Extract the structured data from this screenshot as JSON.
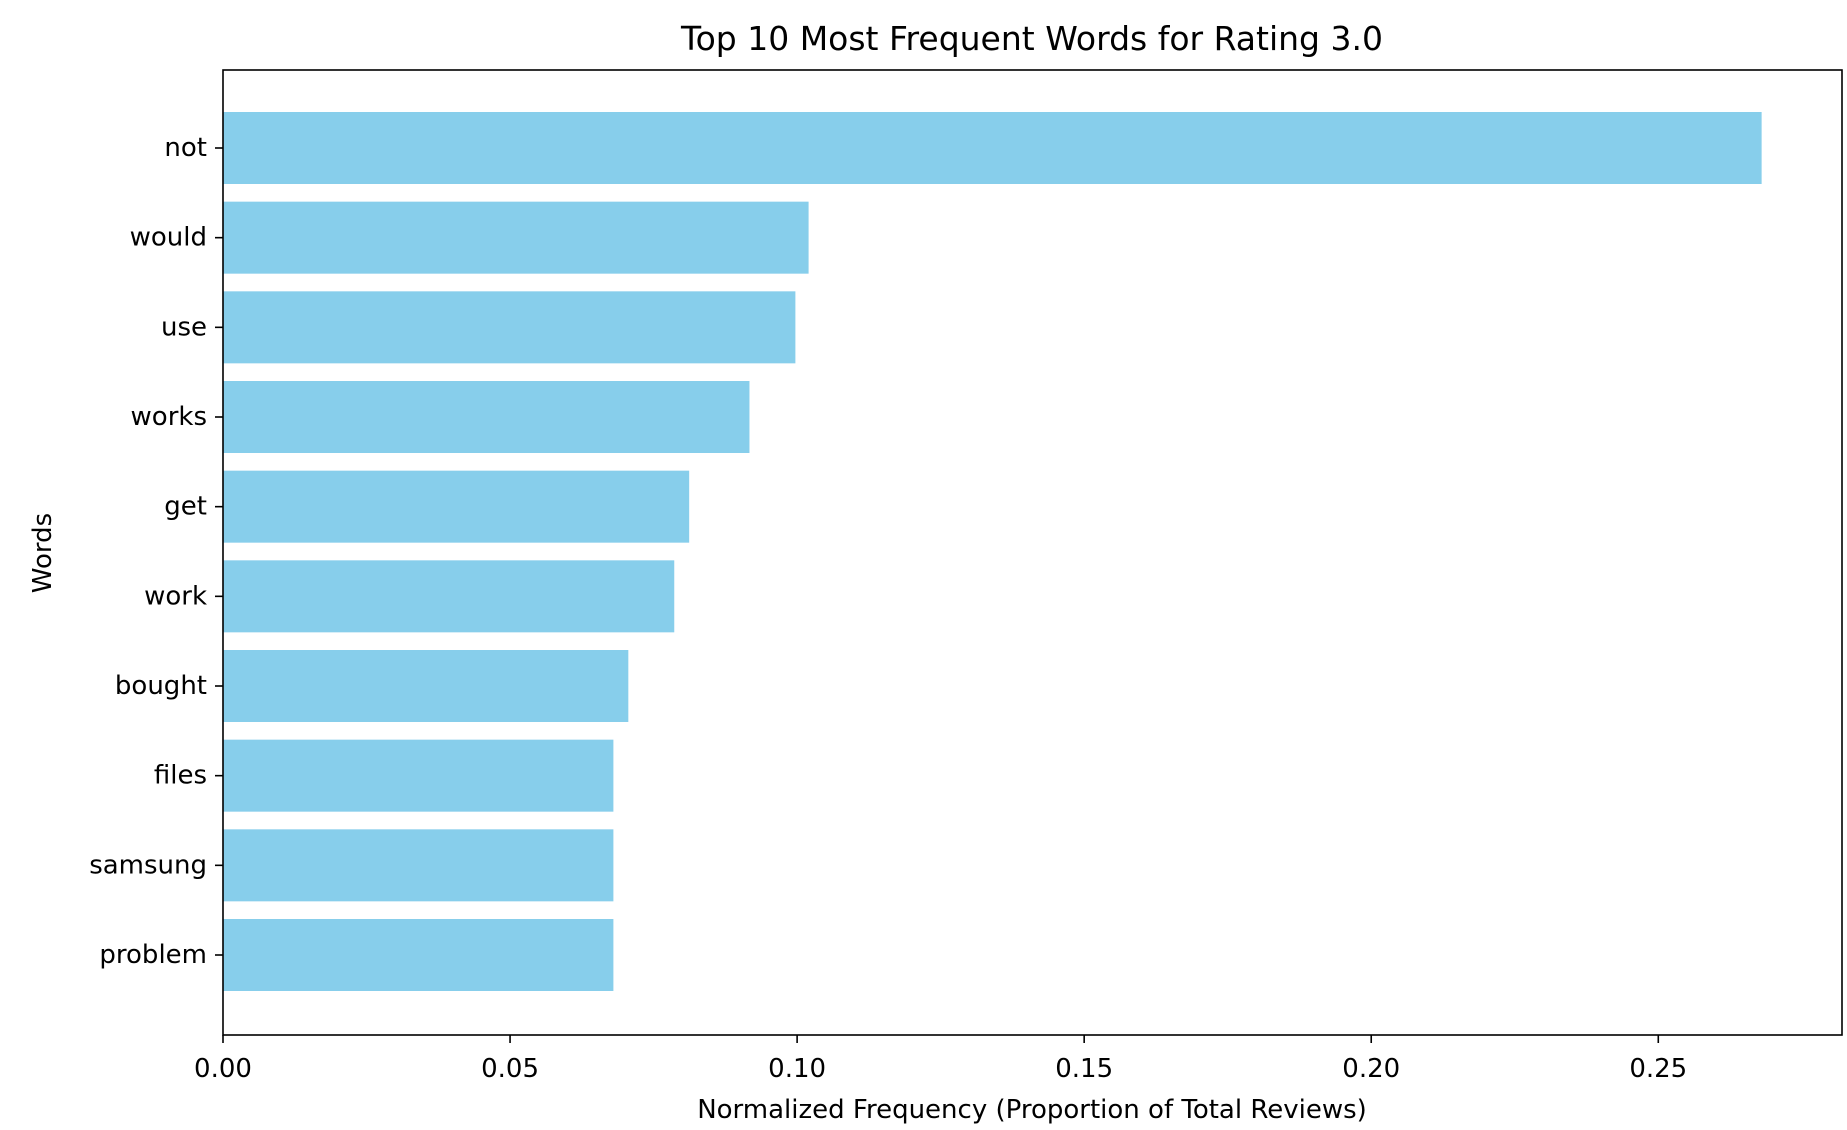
{
  "chart_data": {
    "type": "bar",
    "orientation": "horizontal",
    "title": "Top 10 Most Frequent Words for Rating 3.0",
    "xlabel": "Normalized Frequency (Proportion of Total Reviews)",
    "ylabel": "Words",
    "categories": [
      "not",
      "would",
      "use",
      "works",
      "get",
      "work",
      "bought",
      "files",
      "samsung",
      "problem"
    ],
    "values": [
      0.268,
      0.102,
      0.0997,
      0.0917,
      0.0812,
      0.0786,
      0.0706,
      0.068,
      0.068,
      0.068
    ],
    "xlim": [
      0,
      0.282
    ],
    "xticks": [
      "0.00",
      "0.05",
      "0.10",
      "0.15",
      "0.20",
      "0.25"
    ],
    "grid": false,
    "bar_color": "#87CEEB"
  }
}
